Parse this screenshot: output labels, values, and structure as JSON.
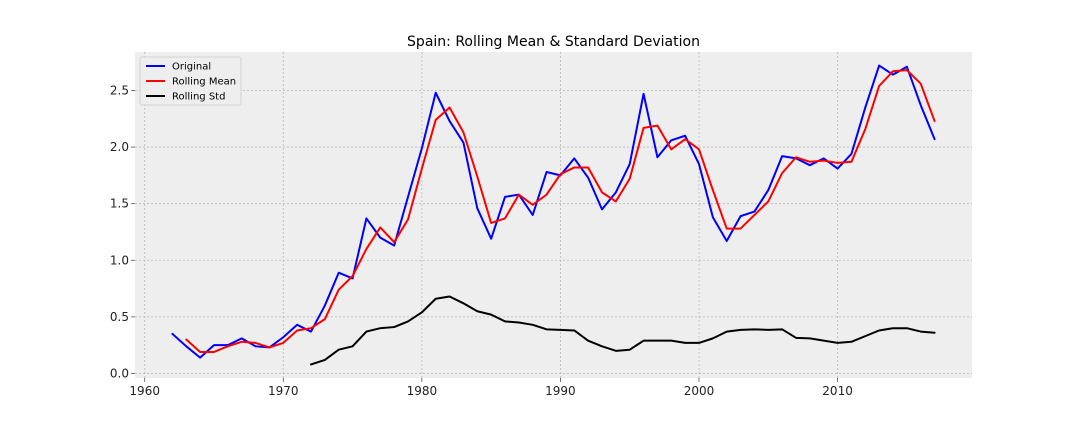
{
  "chart_data": {
    "type": "line",
    "title": "Spain: Rolling Mean & Standard Deviation",
    "xlabel": "",
    "ylabel": "",
    "xlim": [
      1959.3,
      2019.7
    ],
    "ylim": [
      -0.04,
      2.84
    ],
    "xticks": [
      1960,
      1970,
      1980,
      1990,
      2000,
      2010
    ],
    "yticks": [
      0.0,
      0.5,
      1.0,
      1.5,
      2.0,
      2.5
    ],
    "grid": true,
    "legend_position": "top-left",
    "series": [
      {
        "name": "Original",
        "color": "#0000ff",
        "x": [
          1962,
          1963,
          1964,
          1965,
          1966,
          1967,
          1968,
          1969,
          1970,
          1971,
          1972,
          1973,
          1974,
          1975,
          1976,
          1977,
          1978,
          1979,
          1980,
          1981,
          1982,
          1983,
          1984,
          1985,
          1986,
          1987,
          1988,
          1989,
          1990,
          1991,
          1992,
          1993,
          1994,
          1995,
          1996,
          1997,
          1998,
          1999,
          2000,
          2001,
          2002,
          2003,
          2004,
          2005,
          2006,
          2007,
          2008,
          2009,
          2010,
          2011,
          2012,
          2013,
          2014,
          2015,
          2016,
          2017
        ],
        "y": [
          0.35,
          0.24,
          0.14,
          0.25,
          0.25,
          0.31,
          0.24,
          0.23,
          0.32,
          0.43,
          0.37,
          0.6,
          0.89,
          0.84,
          1.37,
          1.2,
          1.13,
          1.56,
          1.99,
          2.48,
          2.23,
          2.04,
          1.46,
          1.19,
          1.56,
          1.58,
          1.4,
          1.78,
          1.75,
          1.9,
          1.73,
          1.45,
          1.6,
          1.85,
          2.47,
          1.91,
          2.06,
          2.1,
          1.85,
          1.38,
          1.17,
          1.39,
          1.43,
          1.62,
          1.92,
          1.9,
          1.84,
          1.9,
          1.81,
          1.94,
          2.35,
          2.72,
          2.64,
          2.71,
          2.37,
          2.07
        ]
      },
      {
        "name": "Rolling Mean",
        "color": "#ff0000",
        "x": [
          1963,
          1964,
          1965,
          1966,
          1967,
          1968,
          1969,
          1970,
          1971,
          1972,
          1973,
          1974,
          1975,
          1976,
          1977,
          1978,
          1979,
          1980,
          1981,
          1982,
          1983,
          1984,
          1985,
          1986,
          1987,
          1988,
          1989,
          1990,
          1991,
          1992,
          1993,
          1994,
          1995,
          1996,
          1997,
          1998,
          1999,
          2000,
          2001,
          2002,
          2003,
          2004,
          2005,
          2006,
          2007,
          2008,
          2009,
          2010,
          2011,
          2012,
          2013,
          2014,
          2015,
          2016,
          2017
        ],
        "y": [
          0.3,
          0.19,
          0.19,
          0.24,
          0.28,
          0.27,
          0.23,
          0.27,
          0.38,
          0.4,
          0.48,
          0.74,
          0.86,
          1.1,
          1.29,
          1.16,
          1.36,
          1.81,
          2.24,
          2.35,
          2.13,
          1.74,
          1.33,
          1.37,
          1.58,
          1.49,
          1.58,
          1.76,
          1.82,
          1.82,
          1.6,
          1.52,
          1.72,
          2.17,
          2.19,
          1.98,
          2.07,
          1.98,
          1.62,
          1.28,
          1.28,
          1.4,
          1.52,
          1.77,
          1.91,
          1.87,
          1.88,
          1.86,
          1.87,
          2.16,
          2.54,
          2.67,
          2.68,
          2.56,
          2.23
        ]
      },
      {
        "name": "Rolling Std",
        "color": "#000000",
        "x": [
          1972,
          1973,
          1974,
          1975,
          1976,
          1977,
          1978,
          1979,
          1980,
          1981,
          1982,
          1983,
          1984,
          1985,
          1986,
          1987,
          1988,
          1989,
          1990,
          1991,
          1992,
          1993,
          1994,
          1995,
          1996,
          1997,
          1998,
          1999,
          2000,
          2001,
          2002,
          2003,
          2004,
          2005,
          2006,
          2007,
          2008,
          2009,
          2010,
          2011,
          2012,
          2013,
          2014,
          2015,
          2016,
          2017
        ],
        "y": [
          0.08,
          0.12,
          0.21,
          0.24,
          0.37,
          0.4,
          0.41,
          0.46,
          0.54,
          0.66,
          0.68,
          0.62,
          0.55,
          0.52,
          0.46,
          0.45,
          0.43,
          0.39,
          0.385,
          0.38,
          0.29,
          0.24,
          0.2,
          0.21,
          0.29,
          0.29,
          0.29,
          0.27,
          0.27,
          0.31,
          0.37,
          0.385,
          0.39,
          0.385,
          0.39,
          0.315,
          0.31,
          0.29,
          0.27,
          0.28,
          0.33,
          0.38,
          0.4,
          0.4,
          0.37,
          0.36
        ]
      }
    ]
  }
}
